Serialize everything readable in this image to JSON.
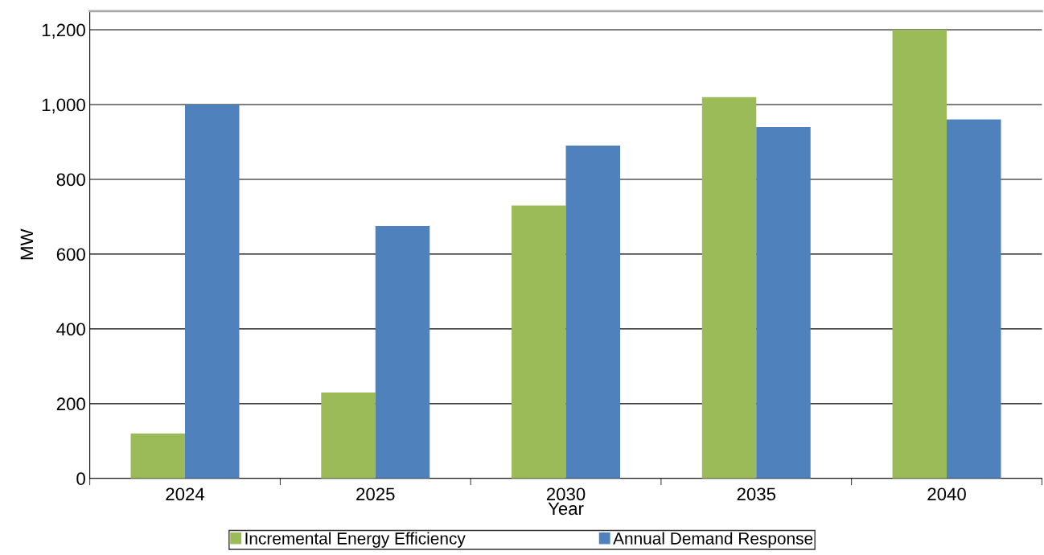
{
  "chart_data": {
    "type": "bar",
    "xlabel": "Year",
    "ylabel": "MW",
    "categories": [
      "2024",
      "2025",
      "2030",
      "2035",
      "2040"
    ],
    "series": [
      {
        "name": "Incremental Energy Efficiency",
        "color": "#9bbb59",
        "values": [
          120,
          230,
          730,
          1020,
          1200
        ]
      },
      {
        "name": "Annual Demand Response",
        "color": "#4f81bd",
        "values": [
          1000,
          675,
          890,
          940,
          960
        ]
      }
    ],
    "ylim": [
      0,
      1250
    ],
    "yticks": [
      0,
      {
        "value": 200,
        "label": "200"
      },
      {
        "value": 400,
        "label": "400"
      },
      {
        "value": 600,
        "label": "600"
      },
      {
        "value": 800,
        "label": "800"
      },
      {
        "value": 1000,
        "label": "1,000"
      },
      {
        "value": 1200,
        "label": "1,200"
      }
    ],
    "grid": "y",
    "legend": "bottom"
  }
}
